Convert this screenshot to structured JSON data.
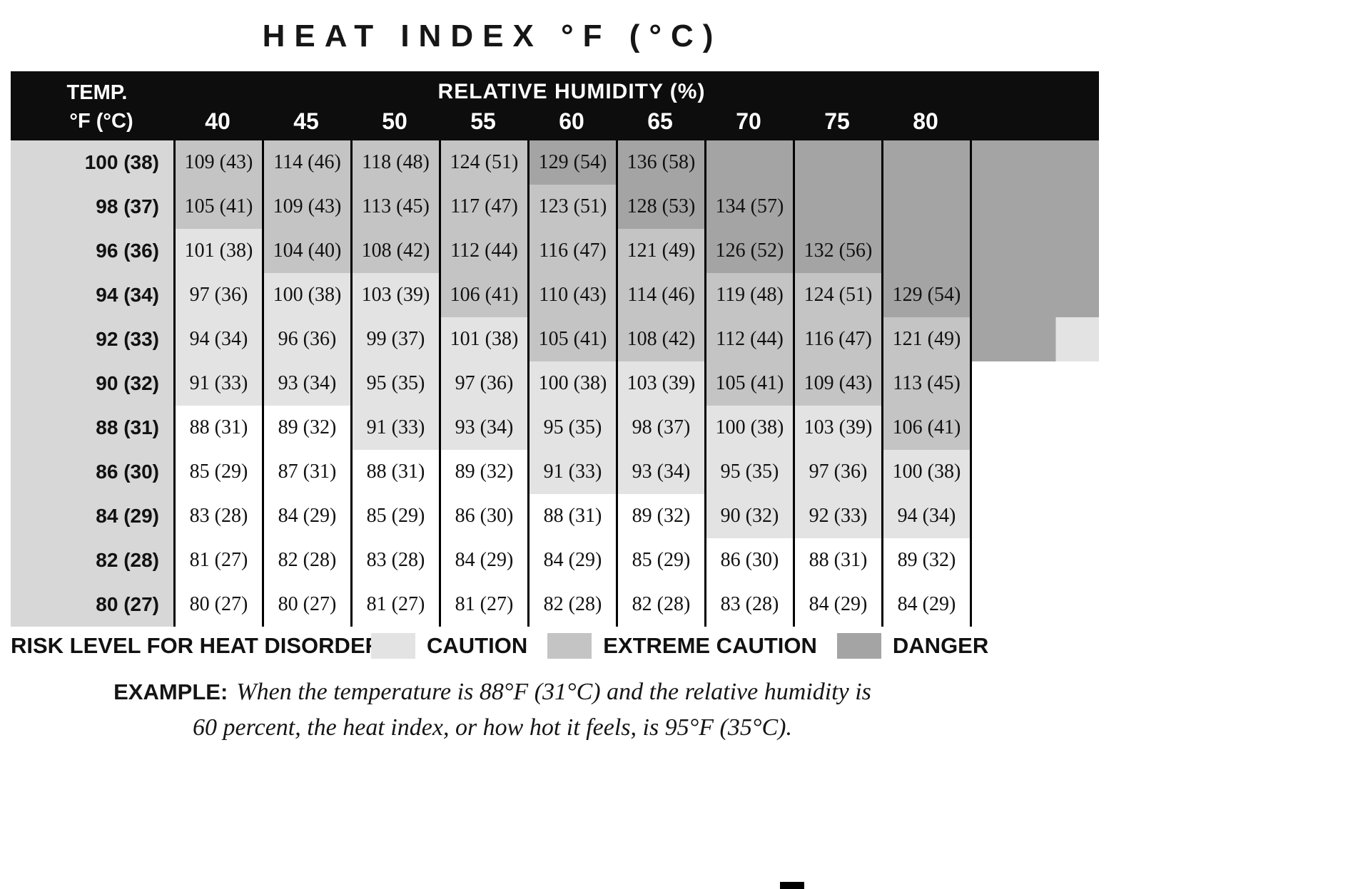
{
  "title": "HEAT INDEX °F (°C)",
  "colors": {
    "header": "#0d0d0d",
    "temp_column": "#d7d7d7",
    "caution": "#e3e3e3",
    "extreme": "#c4c4c4",
    "danger": "#a4a4a4"
  },
  "chart_data": {
    "type": "heatmap",
    "title": "HEAT INDEX °F (°C)",
    "x_axis_label": "RELATIVE HUMIDITY (%)",
    "x": [
      "40",
      "45",
      "50",
      "55",
      "60",
      "65",
      "70",
      "75",
      "80"
    ],
    "y_axis_label_line1": "TEMP.",
    "y_axis_label_line2": "°F (°C)",
    "risk_levels": [
      "none",
      "caution",
      "extreme",
      "danger"
    ],
    "rows": [
      {
        "temp": "100 (38)",
        "filler": "danger",
        "cells": [
          [
            "109 (43)",
            "e"
          ],
          [
            "114 (46)",
            "e"
          ],
          [
            "118 (48)",
            "e"
          ],
          [
            "124 (51)",
            "e"
          ],
          [
            "129 (54)",
            "d"
          ],
          [
            "136 (58)",
            "d"
          ],
          [
            "",
            "d"
          ],
          [
            "",
            "d"
          ],
          [
            "",
            "d"
          ]
        ]
      },
      {
        "temp": "98 (37)",
        "filler": "danger",
        "cells": [
          [
            "105 (41)",
            "e"
          ],
          [
            "109 (43)",
            "e"
          ],
          [
            "113 (45)",
            "e"
          ],
          [
            "117 (47)",
            "e"
          ],
          [
            "123 (51)",
            "e"
          ],
          [
            "128 (53)",
            "d"
          ],
          [
            "134 (57)",
            "d"
          ],
          [
            "",
            "d"
          ],
          [
            "",
            "d"
          ]
        ]
      },
      {
        "temp": "96 (36)",
        "filler": "danger",
        "cells": [
          [
            "101 (38)",
            "c"
          ],
          [
            "104 (40)",
            "e"
          ],
          [
            "108 (42)",
            "e"
          ],
          [
            "112 (44)",
            "e"
          ],
          [
            "116 (47)",
            "e"
          ],
          [
            "121 (49)",
            "e"
          ],
          [
            "126 (52)",
            "d"
          ],
          [
            "132 (56)",
            "d"
          ],
          [
            "",
            "d"
          ]
        ]
      },
      {
        "temp": "94 (34)",
        "filler": "danger",
        "cells": [
          [
            "97 (36)",
            "c"
          ],
          [
            "100 (38)",
            "c"
          ],
          [
            "103 (39)",
            "c"
          ],
          [
            "106 (41)",
            "e"
          ],
          [
            "110 (43)",
            "e"
          ],
          [
            "114 (46)",
            "e"
          ],
          [
            "119 (48)",
            "e"
          ],
          [
            "124 (51)",
            "e"
          ],
          [
            "129 (54)",
            "d"
          ]
        ]
      },
      {
        "temp": "92 (33)",
        "filler": "danger_step",
        "cells": [
          [
            "94 (34)",
            "c"
          ],
          [
            "96 (36)",
            "c"
          ],
          [
            "99 (37)",
            "c"
          ],
          [
            "101 (38)",
            "c"
          ],
          [
            "105 (41)",
            "e"
          ],
          [
            "108 (42)",
            "e"
          ],
          [
            "112 (44)",
            "e"
          ],
          [
            "116 (47)",
            "e"
          ],
          [
            "121 (49)",
            "e"
          ]
        ]
      },
      {
        "temp": "90 (32)",
        "filler": "none",
        "cells": [
          [
            "91 (33)",
            "c"
          ],
          [
            "93 (34)",
            "c"
          ],
          [
            "95 (35)",
            "c"
          ],
          [
            "97 (36)",
            "c"
          ],
          [
            "100 (38)",
            "c"
          ],
          [
            "103 (39)",
            "c"
          ],
          [
            "105 (41)",
            "e"
          ],
          [
            "109 (43)",
            "e"
          ],
          [
            "113 (45)",
            "e"
          ]
        ]
      },
      {
        "temp": "88 (31)",
        "filler": "none",
        "cells": [
          [
            "88 (31)",
            "n"
          ],
          [
            "89 (32)",
            "n"
          ],
          [
            "91 (33)",
            "c"
          ],
          [
            "93 (34)",
            "c"
          ],
          [
            "95 (35)",
            "c"
          ],
          [
            "98 (37)",
            "c"
          ],
          [
            "100 (38)",
            "c"
          ],
          [
            "103 (39)",
            "c"
          ],
          [
            "106 (41)",
            "e"
          ]
        ]
      },
      {
        "temp": "86 (30)",
        "filler": "none",
        "cells": [
          [
            "85 (29)",
            "n"
          ],
          [
            "87 (31)",
            "n"
          ],
          [
            "88 (31)",
            "n"
          ],
          [
            "89 (32)",
            "n"
          ],
          [
            "91 (33)",
            "c"
          ],
          [
            "93 (34)",
            "c"
          ],
          [
            "95 (35)",
            "c"
          ],
          [
            "97 (36)",
            "c"
          ],
          [
            "100 (38)",
            "c"
          ]
        ]
      },
      {
        "temp": "84 (29)",
        "filler": "none",
        "cells": [
          [
            "83 (28)",
            "n"
          ],
          [
            "84 (29)",
            "n"
          ],
          [
            "85 (29)",
            "n"
          ],
          [
            "86 (30)",
            "n"
          ],
          [
            "88 (31)",
            "n"
          ],
          [
            "89 (32)",
            "n"
          ],
          [
            "90 (32)",
            "c"
          ],
          [
            "92 (33)",
            "c"
          ],
          [
            "94 (34)",
            "c"
          ]
        ]
      },
      {
        "temp": "82 (28)",
        "filler": "none",
        "cells": [
          [
            "81 (27)",
            "n"
          ],
          [
            "82 (28)",
            "n"
          ],
          [
            "83 (28)",
            "n"
          ],
          [
            "84 (29)",
            "n"
          ],
          [
            "84 (29)",
            "n"
          ],
          [
            "85 (29)",
            "n"
          ],
          [
            "86 (30)",
            "n"
          ],
          [
            "88 (31)",
            "n"
          ],
          [
            "89 (32)",
            "n"
          ]
        ]
      },
      {
        "temp": "80 (27)",
        "filler": "none",
        "cells": [
          [
            "80 (27)",
            "n"
          ],
          [
            "80 (27)",
            "n"
          ],
          [
            "81 (27)",
            "n"
          ],
          [
            "81 (27)",
            "n"
          ],
          [
            "82 (28)",
            "n"
          ],
          [
            "82 (28)",
            "n"
          ],
          [
            "83 (28)",
            "n"
          ],
          [
            "84 (29)",
            "n"
          ],
          [
            "84 (29)",
            "n"
          ]
        ]
      }
    ]
  },
  "legend": {
    "label": "RISK LEVEL FOR HEAT DISORDERS:",
    "items": [
      {
        "label": "CAUTION",
        "risk": "caution"
      },
      {
        "label": "EXTREME CAUTION",
        "risk": "extreme"
      },
      {
        "label": "DANGER",
        "risk": "danger"
      }
    ]
  },
  "example": {
    "label": "EXAMPLE:",
    "line1": "When the temperature is 88°F (31°C) and the relative humidity is",
    "line2": "60 percent, the heat index, or how hot it feels, is 95°F (35°C)."
  }
}
